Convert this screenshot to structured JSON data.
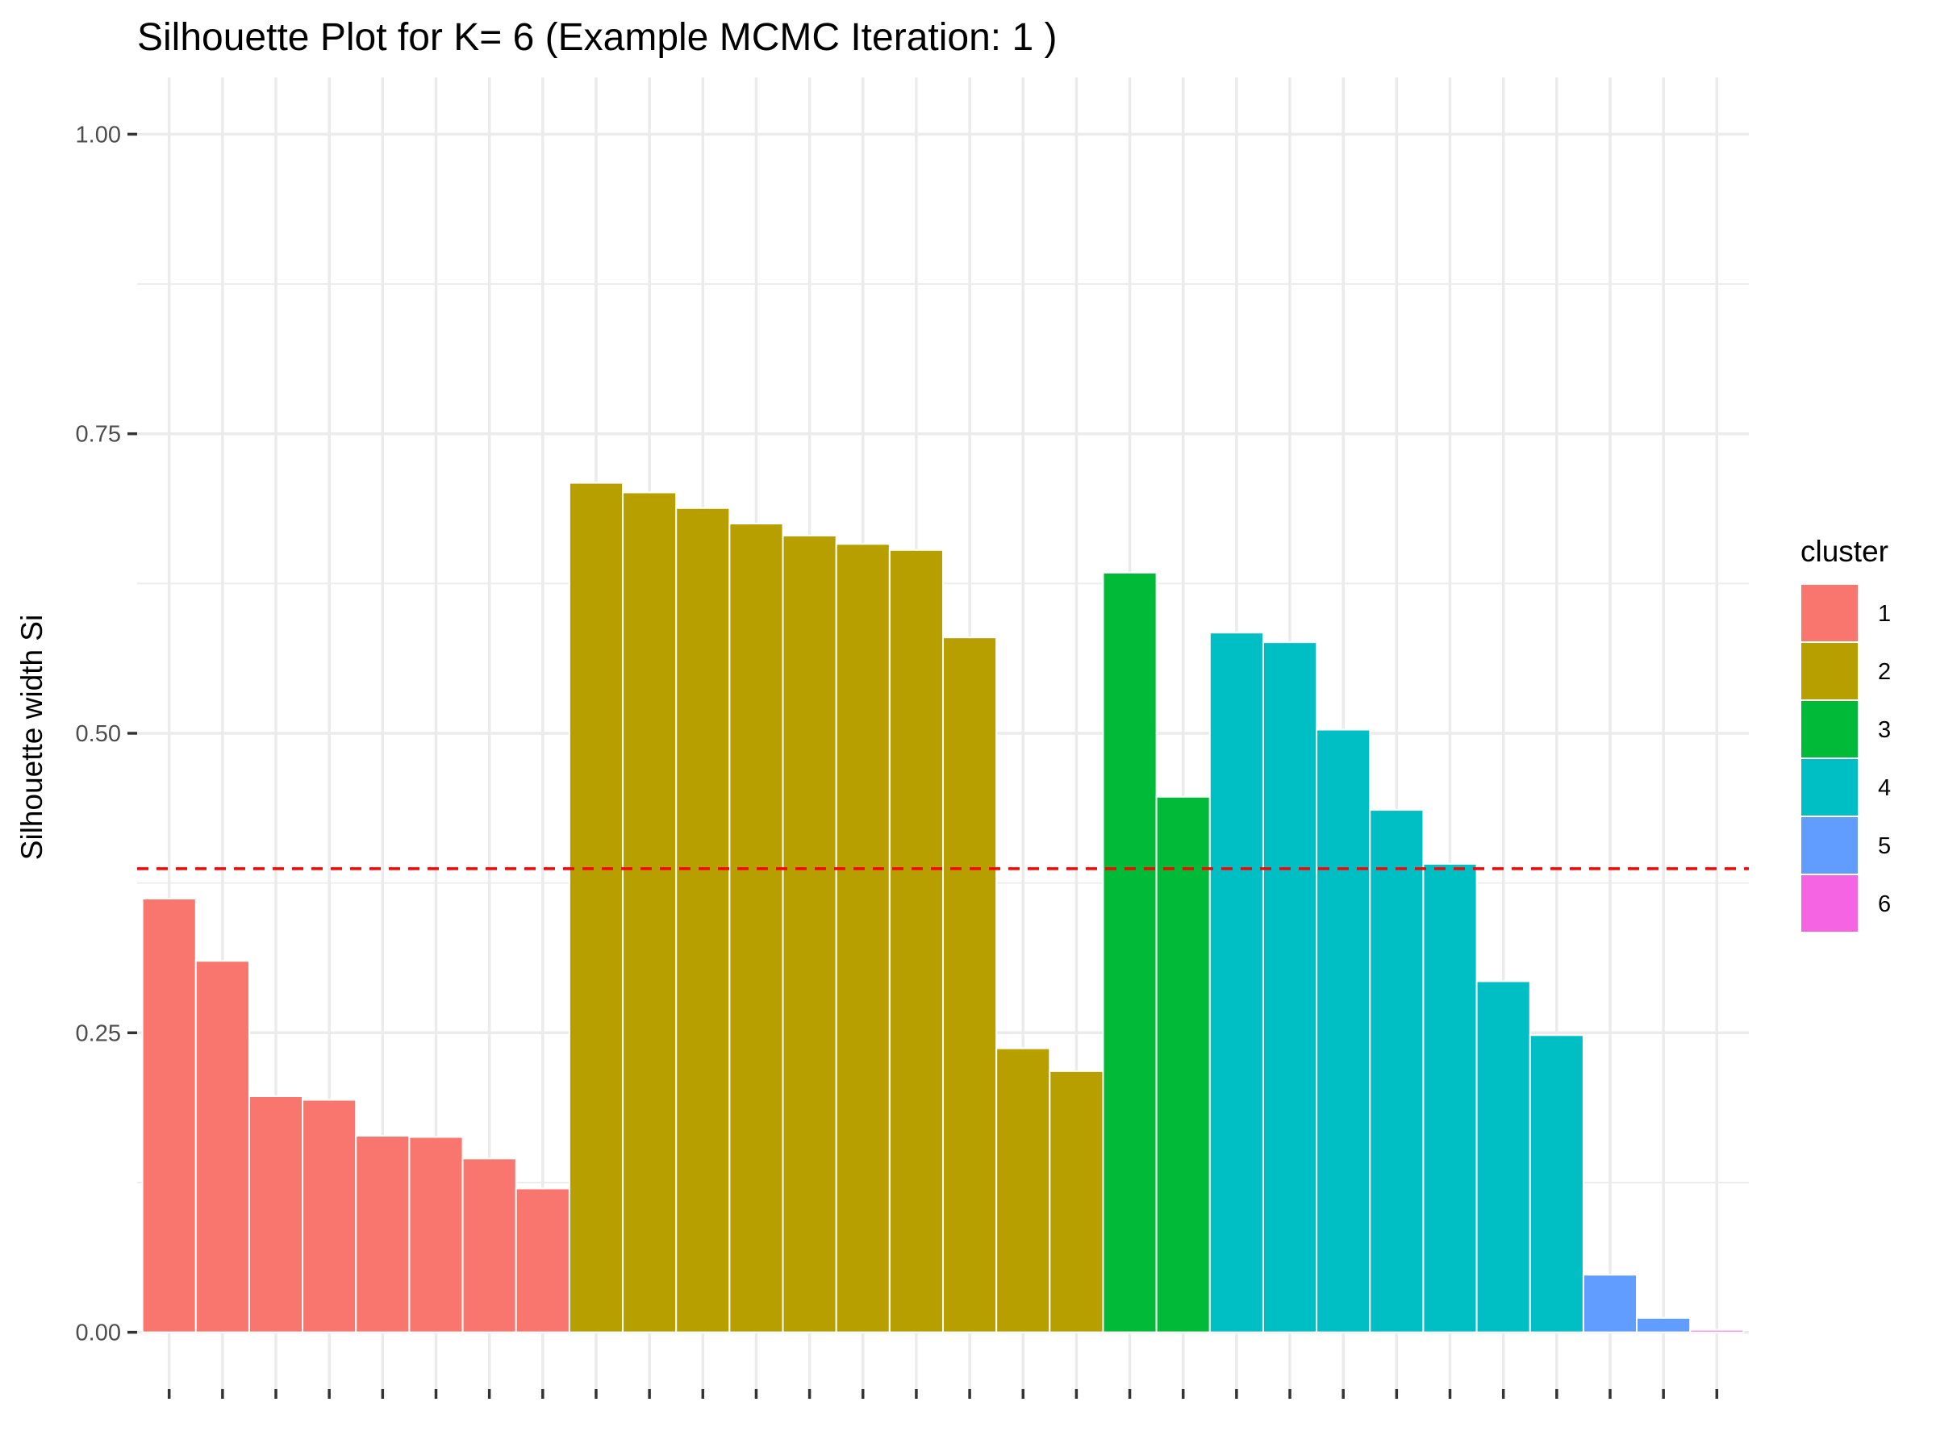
{
  "chart_data": {
    "type": "bar",
    "title": "Silhouette Plot for K= 6 (Example MCMC Iteration: 1 )",
    "xlabel": "",
    "ylabel": "Silhouette width Si",
    "ylim": [
      -0.0474,
      1.0474
    ],
    "y_ticks": [
      0.0,
      0.25,
      0.5,
      0.75,
      1.0
    ],
    "y_tick_labels": [
      "0.00",
      "0.25",
      "0.50",
      "0.75",
      "1.00"
    ],
    "grid": true,
    "legend": {
      "title": "cluster",
      "placement": "right",
      "entries": [
        "1",
        "2",
        "3",
        "4",
        "5",
        "6"
      ]
    },
    "cluster_colors": {
      "1": "#F8766D",
      "2": "#B79F00",
      "3": "#00BA38",
      "4": "#00BFC4",
      "5": "#619CFF",
      "6": "#F564E3"
    },
    "reference_line": {
      "y": 0.387,
      "color": "#ff0000",
      "style": "dashed"
    },
    "bars": [
      {
        "cluster": "1",
        "value": 0.362
      },
      {
        "cluster": "1",
        "value": 0.31
      },
      {
        "cluster": "1",
        "value": 0.197
      },
      {
        "cluster": "1",
        "value": 0.194
      },
      {
        "cluster": "1",
        "value": 0.164
      },
      {
        "cluster": "1",
        "value": 0.163
      },
      {
        "cluster": "1",
        "value": 0.145
      },
      {
        "cluster": "1",
        "value": 0.12
      },
      {
        "cluster": "2",
        "value": 0.709
      },
      {
        "cluster": "2",
        "value": 0.701
      },
      {
        "cluster": "2",
        "value": 0.688
      },
      {
        "cluster": "2",
        "value": 0.675
      },
      {
        "cluster": "2",
        "value": 0.665
      },
      {
        "cluster": "2",
        "value": 0.658
      },
      {
        "cluster": "2",
        "value": 0.653
      },
      {
        "cluster": "2",
        "value": 0.58
      },
      {
        "cluster": "2",
        "value": 0.237
      },
      {
        "cluster": "2",
        "value": 0.218
      },
      {
        "cluster": "3",
        "value": 0.634
      },
      {
        "cluster": "3",
        "value": 0.447
      },
      {
        "cluster": "4",
        "value": 0.584
      },
      {
        "cluster": "4",
        "value": 0.576
      },
      {
        "cluster": "4",
        "value": 0.503
      },
      {
        "cluster": "4",
        "value": 0.436
      },
      {
        "cluster": "4",
        "value": 0.391
      },
      {
        "cluster": "4",
        "value": 0.293
      },
      {
        "cluster": "4",
        "value": 0.248
      },
      {
        "cluster": "5",
        "value": 0.048
      },
      {
        "cluster": "5",
        "value": 0.012
      },
      {
        "cluster": "6",
        "value": 0.002
      }
    ]
  }
}
